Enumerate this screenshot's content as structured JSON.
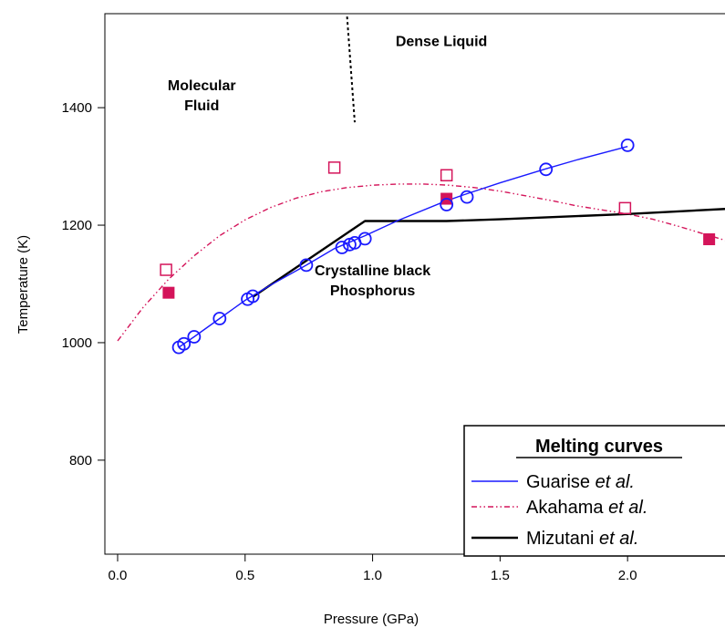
{
  "chart_data": {
    "type": "line",
    "xlabel": "Pressure (GPa)",
    "ylabel": "Temperature (K)",
    "xlim": [
      -0.05,
      2.4
    ],
    "ylim": [
      640,
      1560
    ],
    "xticks": [
      {
        "value": 0.0,
        "label": "0.0"
      },
      {
        "value": 0.5,
        "label": "0.5"
      },
      {
        "value": 1.0,
        "label": "1.0"
      },
      {
        "value": 1.5,
        "label": "1.5"
      },
      {
        "value": 2.0,
        "label": "2.0"
      }
    ],
    "yticks": [
      {
        "value": 800,
        "label": "800"
      },
      {
        "value": 1000,
        "label": "1000"
      },
      {
        "value": 1200,
        "label": "1200"
      },
      {
        "value": 1400,
        "label": "1400"
      }
    ],
    "grid": false,
    "annotations": [
      {
        "lines": [
          "Molecular",
          "Fluid"
        ],
        "x": 0.33,
        "y": 1430
      },
      {
        "lines": [
          "Dense Liquid"
        ],
        "x": 1.27,
        "y": 1505
      },
      {
        "lines": [
          "Crystalline black",
          "Phosphorus"
        ],
        "x": 1.0,
        "y": 1115
      }
    ],
    "boundary_line": {
      "points": [
        [
          0.9,
          1555
        ],
        [
          0.93,
          1375
        ]
      ],
      "color": "#000000",
      "style": "dotted"
    },
    "legend": {
      "title": "Melting curves",
      "position": "bottom-right",
      "entries": [
        {
          "series": "guarise",
          "prefix": "Guarise ",
          "italic": "et al."
        },
        {
          "series": "akahama",
          "prefix": "Akahama ",
          "italic": "et al."
        },
        {
          "series": "mizutani",
          "prefix": "Mizutani ",
          "italic": "et al."
        }
      ]
    },
    "series": [
      {
        "id": "guarise",
        "name": "Guarise et al.",
        "color": "#1a1aff",
        "style": "solid",
        "curve": [
          [
            0.24,
            992
          ],
          [
            0.26,
            998
          ],
          [
            0.3,
            1010
          ],
          [
            0.4,
            1041
          ],
          [
            0.5,
            1072
          ],
          [
            0.53,
            1080
          ],
          [
            0.6,
            1098
          ],
          [
            0.74,
            1132
          ],
          [
            0.85,
            1160
          ],
          [
            0.97,
            1182
          ],
          [
            1.1,
            1208
          ],
          [
            1.28,
            1240
          ],
          [
            1.36,
            1252
          ],
          [
            1.5,
            1272
          ],
          [
            1.68,
            1296
          ],
          [
            1.8,
            1311
          ],
          [
            2.0,
            1334
          ]
        ],
        "points": [
          [
            0.24,
            992
          ],
          [
            0.26,
            998
          ],
          [
            0.3,
            1010
          ],
          [
            0.4,
            1041
          ],
          [
            0.51,
            1074
          ],
          [
            0.53,
            1079
          ],
          [
            0.74,
            1132
          ],
          [
            0.88,
            1162
          ],
          [
            0.91,
            1167
          ],
          [
            0.93,
            1170
          ],
          [
            0.97,
            1177
          ],
          [
            1.29,
            1235
          ],
          [
            1.37,
            1248
          ],
          [
            1.68,
            1295
          ],
          [
            2.0,
            1336
          ]
        ],
        "marker": "open-circle"
      },
      {
        "id": "akahama",
        "name": "Akahama et al.",
        "color": "#d4145a",
        "style": "dash-dot",
        "curve": [
          [
            0.0,
            1003
          ],
          [
            0.1,
            1060
          ],
          [
            0.2,
            1108
          ],
          [
            0.3,
            1148
          ],
          [
            0.4,
            1182
          ],
          [
            0.5,
            1209
          ],
          [
            0.6,
            1230
          ],
          [
            0.7,
            1246
          ],
          [
            0.8,
            1257
          ],
          [
            0.9,
            1264
          ],
          [
            1.0,
            1268
          ],
          [
            1.1,
            1270
          ],
          [
            1.2,
            1270
          ],
          [
            1.3,
            1268
          ],
          [
            1.4,
            1264
          ],
          [
            1.5,
            1258
          ],
          [
            1.6,
            1250
          ],
          [
            1.7,
            1242
          ],
          [
            1.8,
            1233
          ],
          [
            1.9,
            1226
          ],
          [
            2.0,
            1219
          ],
          [
            2.1,
            1210
          ],
          [
            2.2,
            1198
          ],
          [
            2.3,
            1185
          ],
          [
            2.4,
            1172
          ]
        ],
        "open_points": [
          [
            0.19,
            1124
          ],
          [
            0.85,
            1298
          ],
          [
            1.29,
            1285
          ],
          [
            1.99,
            1229
          ]
        ],
        "filled_points": [
          [
            0.2,
            1085
          ],
          [
            1.29,
            1245
          ],
          [
            2.32,
            1176
          ]
        ],
        "marker": "square"
      },
      {
        "id": "mizutani",
        "name": "Mizutani et al.",
        "color": "#000000",
        "style": "solid",
        "curve": [
          [
            0.53,
            1078
          ],
          [
            0.97,
            1207
          ],
          [
            1.29,
            1207
          ],
          [
            1.5,
            1210
          ],
          [
            2.0,
            1219
          ],
          [
            2.4,
            1228
          ]
        ]
      }
    ]
  }
}
